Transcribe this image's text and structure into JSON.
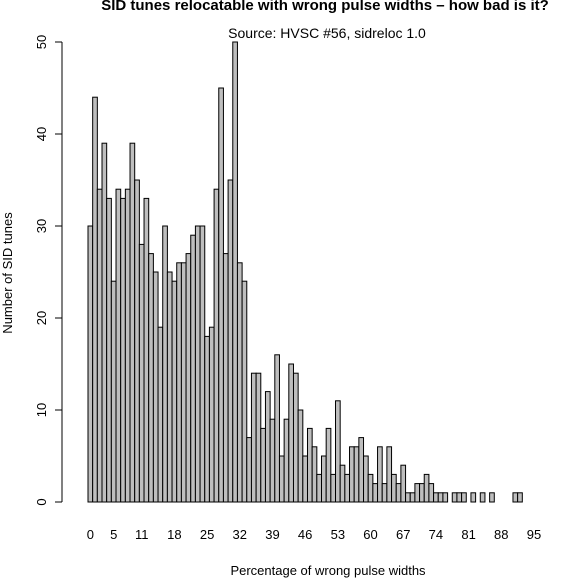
{
  "chart_data": {
    "type": "bar",
    "title": "SID tunes relocatable with wrong pulse widths – how bad is it?",
    "subtitle": "Source: HVSC #56, sidreloc 1.0",
    "xlabel": "Percentage of wrong pulse widths",
    "ylabel": "Number of SID tunes",
    "ylim": [
      0,
      50
    ],
    "yticks": [
      0,
      10,
      20,
      30,
      40,
      50
    ],
    "x_tick_labels": [
      "0",
      "5",
      "11",
      "18",
      "25",
      "32",
      "39",
      "46",
      "53",
      "60",
      "67",
      "74",
      "81",
      "88",
      "95"
    ],
    "x_tick_positions": [
      0,
      5,
      11,
      18,
      25,
      32,
      39,
      46,
      53,
      60,
      67,
      74,
      81,
      88,
      95
    ],
    "categories": [
      0,
      1,
      2,
      3,
      4,
      5,
      6,
      7,
      8,
      9,
      10,
      11,
      12,
      13,
      14,
      15,
      16,
      17,
      18,
      19,
      20,
      21,
      22,
      23,
      24,
      25,
      26,
      27,
      28,
      29,
      30,
      31,
      32,
      33,
      34,
      35,
      36,
      37,
      38,
      39,
      40,
      41,
      42,
      43,
      44,
      45,
      46,
      47,
      48,
      49,
      50,
      51,
      52,
      53,
      54,
      55,
      56,
      57,
      58,
      59,
      60,
      61,
      62,
      63,
      64,
      65,
      66,
      67,
      68,
      69,
      70,
      71,
      72,
      73,
      74,
      75,
      76,
      77,
      78,
      79,
      80,
      81,
      82,
      83,
      84,
      85,
      86,
      87,
      88,
      89,
      90,
      91,
      92,
      93,
      94,
      95,
      96,
      97,
      98,
      99,
      100
    ],
    "values": [
      30,
      44,
      34,
      39,
      33,
      24,
      34,
      33,
      34,
      39,
      35,
      28,
      33,
      27,
      25,
      19,
      30,
      25,
      24,
      26,
      26,
      27,
      29,
      30,
      30,
      18,
      19,
      34,
      45,
      27,
      35,
      50,
      26,
      24,
      7,
      14,
      14,
      8,
      12,
      9,
      16,
      5,
      9,
      15,
      14,
      10,
      5,
      8,
      6,
      3,
      5,
      8,
      3,
      11,
      4,
      3,
      6,
      6,
      7,
      5,
      3,
      2,
      6,
      2,
      6,
      3,
      2,
      4,
      1,
      1,
      2,
      2,
      3,
      2,
      1,
      1,
      1,
      0,
      1,
      1,
      1,
      0,
      1,
      0,
      1,
      0,
      1,
      0,
      0,
      0,
      0,
      1,
      1,
      0,
      0,
      0,
      0,
      0,
      0,
      0,
      0
    ],
    "grid": false,
    "legend": "none",
    "bar_fill": "#bebebe",
    "bar_stroke": "#000000"
  }
}
